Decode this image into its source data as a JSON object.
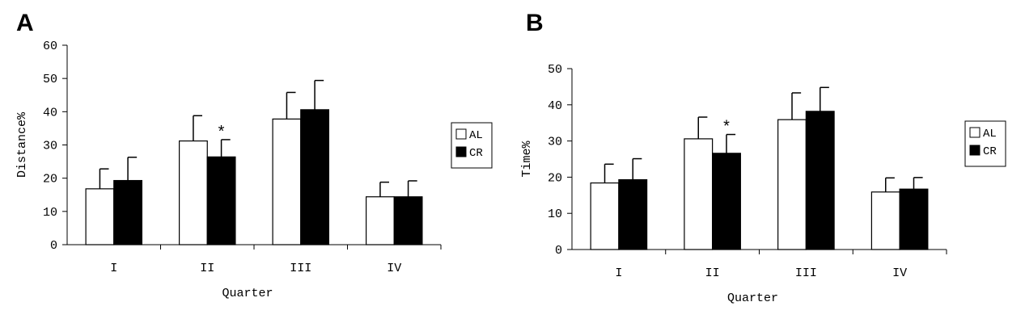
{
  "panels": [
    {
      "letter": "A"
    },
    {
      "letter": "B"
    }
  ],
  "chart_data": [
    {
      "type": "bar",
      "panel": "A",
      "categories": [
        "I",
        "II",
        "III",
        "IV"
      ],
      "series": [
        {
          "name": "AL",
          "values": [
            16.8,
            31.2,
            37.8,
            14.4
          ],
          "errors": [
            6.0,
            7.6,
            8.0,
            4.4
          ],
          "color": "#ffffff"
        },
        {
          "name": "CR",
          "values": [
            19.3,
            26.4,
            40.6,
            14.4
          ],
          "errors": [
            7.0,
            5.2,
            8.8,
            4.8
          ],
          "color": "#000000"
        }
      ],
      "annotations": [
        {
          "category": "II",
          "series": "CR",
          "text": "*"
        }
      ],
      "xlabel": "Quarter",
      "ylabel": "Distance%",
      "ylim": [
        0,
        60
      ],
      "yticks": [
        "0",
        "10",
        "20",
        "30",
        "40",
        "50",
        "60"
      ],
      "grid": false,
      "legend_position": "right"
    },
    {
      "type": "bar",
      "panel": "B",
      "categories": [
        "I",
        "II",
        "III",
        "IV"
      ],
      "series": [
        {
          "name": "AL",
          "values": [
            18.4,
            30.6,
            35.9,
            15.9
          ],
          "errors": [
            5.2,
            6.0,
            7.4,
            3.9
          ],
          "color": "#ffffff"
        },
        {
          "name": "CR",
          "values": [
            19.3,
            26.6,
            38.2,
            16.7
          ],
          "errors": [
            5.8,
            5.2,
            6.6,
            3.2
          ],
          "color": "#000000"
        }
      ],
      "annotations": [
        {
          "category": "II",
          "series": "CR",
          "text": "*"
        }
      ],
      "xlabel": "Quarter",
      "ylabel": "Time%",
      "ylim": [
        0,
        50
      ],
      "yticks": [
        "0",
        "10",
        "20",
        "30",
        "40",
        "50"
      ],
      "grid": false,
      "legend_position": "right"
    }
  ]
}
